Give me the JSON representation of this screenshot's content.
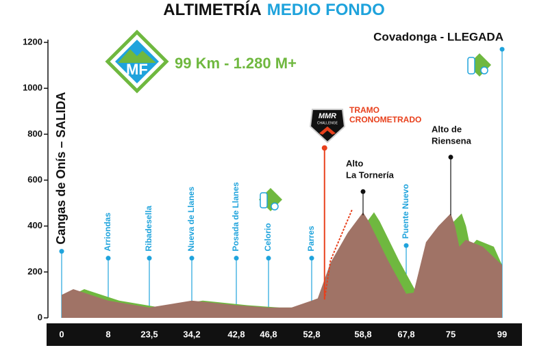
{
  "chart_data": {
    "type": "area",
    "title": {
      "part1": "ALTIMETRÍA",
      "part2": "MEDIO FONDO"
    },
    "subtitle": "99 Km - 1.280 M+",
    "logo_text": "MF",
    "timing_logo": {
      "brand": "MMR",
      "sub": "CHALLENGE"
    },
    "ylim": [
      0,
      1200
    ],
    "yticks": [
      0,
      200,
      400,
      600,
      800,
      1000,
      1200
    ],
    "xlim": [
      0,
      99
    ],
    "xticks": [
      0,
      8,
      {
        "value": 23.5,
        "label": "23,5"
      },
      {
        "value": 34.2,
        "label": "34,2"
      },
      {
        "value": 42.8,
        "label": "42,8"
      },
      {
        "value": 46.8,
        "label": "46,8"
      },
      {
        "value": 52.8,
        "label": "52,8"
      },
      {
        "value": 58.8,
        "label": "58,8"
      },
      {
        "value": 67.8,
        "label": "67,8"
      },
      75,
      99
    ],
    "profile": {
      "color": "#a07366",
      "shade_color": "#6fb83f",
      "x": [
        0,
        2,
        8,
        23.5,
        34.2,
        42.8,
        46.8,
        50,
        52.8,
        53.5,
        55,
        57,
        58.8,
        60,
        64,
        67.8,
        69,
        71,
        73,
        75,
        77,
        79,
        82,
        90,
        99
      ],
      "values": [
        100,
        125,
        75,
        45,
        75,
        55,
        45,
        45,
        75,
        85,
        240,
        370,
        460,
        420,
        250,
        105,
        110,
        330,
        400,
        455,
        400,
        310,
        340,
        310,
        230
      ]
    },
    "waypoints": [
      {
        "label": "Cangas de Onís – SALIDA",
        "x": 0,
        "y": 290,
        "kind": "start"
      },
      {
        "label": "Arriondas",
        "x": 8,
        "y": 260,
        "kind": "town"
      },
      {
        "label": "Ribadesella",
        "x": 23.5,
        "y": 260,
        "kind": "town"
      },
      {
        "label": "Nueva de Llanes",
        "x": 34.2,
        "y": 260,
        "kind": "town"
      },
      {
        "label": "Posada de Llanes",
        "x": 42.8,
        "y": 260,
        "kind": "town"
      },
      {
        "label": "Celorio",
        "x": 46.8,
        "y": 260,
        "kind": "town"
      },
      {
        "label": "Parres",
        "x": 52.8,
        "y": 260,
        "kind": "town"
      },
      {
        "label": "Puente Nuevo",
        "x": 67.8,
        "y": 315,
        "kind": "town"
      },
      {
        "label": "Covadonga - LLEGADA",
        "x": 99,
        "y": 1170,
        "kind": "finish"
      }
    ],
    "summits": [
      {
        "lines": [
          "Alto",
          "La Tornería"
        ],
        "x": 58.8,
        "y": 550
      },
      {
        "lines": [
          "Alto de",
          "Riensena"
        ],
        "x": 75,
        "y": 700
      }
    ],
    "timed_section": {
      "lines": [
        "TRAMO",
        "CRONOMETRADO"
      ],
      "x": 54.3,
      "y": 740,
      "color": "#e8401c"
    }
  }
}
